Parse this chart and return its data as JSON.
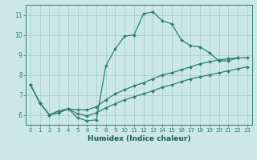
{
  "xlabel": "Humidex (Indice chaleur)",
  "bg_color": "#cce8e4",
  "line_color": "#2e7d6e",
  "grid_color": "#aaceca",
  "xlim": [
    -0.5,
    23.5
  ],
  "ylim": [
    5.5,
    11.5
  ],
  "yticks": [
    6,
    7,
    8,
    9,
    10,
    11
  ],
  "xticks": [
    0,
    1,
    2,
    3,
    4,
    5,
    6,
    7,
    8,
    9,
    10,
    11,
    12,
    13,
    14,
    15,
    16,
    17,
    18,
    19,
    20,
    21,
    22,
    23
  ],
  "line1": [
    7.5,
    6.6,
    6.0,
    6.2,
    6.3,
    5.85,
    5.7,
    5.75,
    8.45,
    9.3,
    9.93,
    10.0,
    11.05,
    11.15,
    10.7,
    10.55,
    9.75,
    9.45,
    9.4,
    9.1,
    8.7,
    8.7,
    8.85,
    null
  ],
  "line2": [
    7.5,
    6.6,
    6.0,
    6.1,
    6.3,
    6.25,
    6.25,
    6.4,
    6.75,
    7.05,
    7.25,
    7.45,
    7.6,
    7.8,
    8.0,
    8.1,
    8.25,
    8.4,
    8.55,
    8.65,
    8.75,
    8.8,
    8.85,
    8.85
  ],
  "line3": [
    7.5,
    6.6,
    6.0,
    6.1,
    6.3,
    6.05,
    5.95,
    6.1,
    6.35,
    6.55,
    6.75,
    6.9,
    7.05,
    7.2,
    7.38,
    7.5,
    7.65,
    7.8,
    7.9,
    8.0,
    8.1,
    8.2,
    8.3,
    8.4
  ]
}
